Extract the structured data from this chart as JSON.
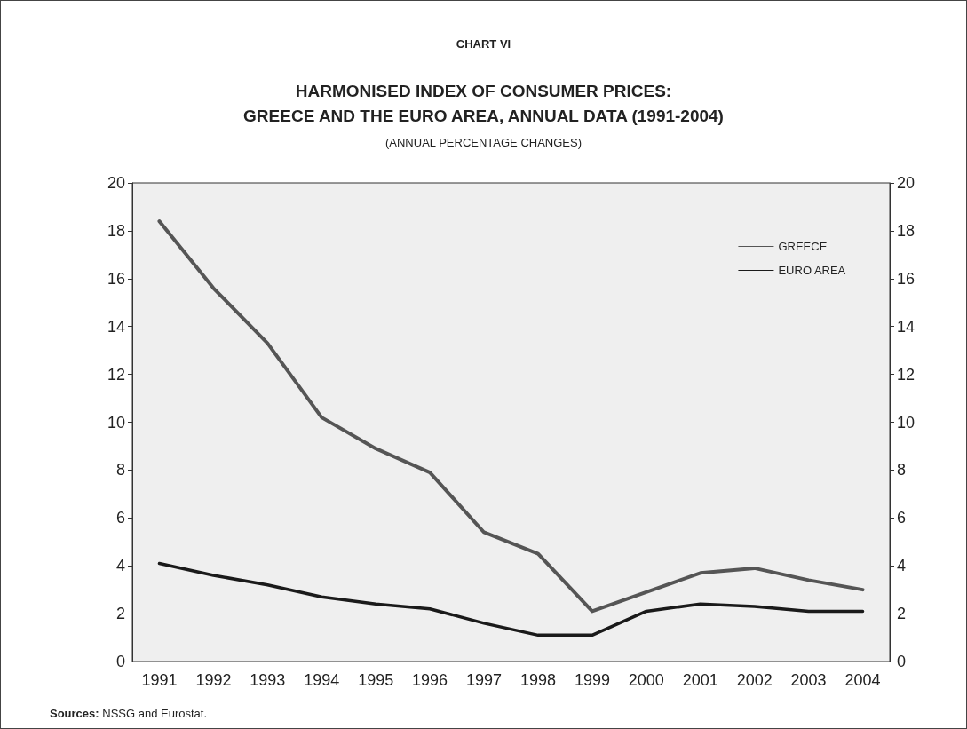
{
  "chart_data": {
    "type": "line",
    "title": "HARMONISED INDEX OF CONSUMER PRICES:\nGREECE AND THE EURO AREA, ANNUAL DATA (1991-2004)",
    "subtitle": "(ANNUAL PERCENTAGE CHANGES)",
    "categories": [
      "1991",
      "1992",
      "1993",
      "1994",
      "1995",
      "1996",
      "1997",
      "1998",
      "1999",
      "2000",
      "2001",
      "2002",
      "2003",
      "2004"
    ],
    "series": [
      {
        "name": "GREECE",
        "color": "#555555",
        "values": [
          18.4,
          15.6,
          13.3,
          10.2,
          8.9,
          7.9,
          5.4,
          4.5,
          2.1,
          2.9,
          3.7,
          3.9,
          3.4,
          3.0
        ]
      },
      {
        "name": "EURO AREA",
        "color": "#1a1a1a",
        "values": [
          4.1,
          3.6,
          3.2,
          2.7,
          2.4,
          2.2,
          1.6,
          1.1,
          1.1,
          2.1,
          2.4,
          2.3,
          2.1,
          2.1
        ]
      }
    ],
    "ylim": [
      0,
      20
    ],
    "yticks": [
      0,
      2,
      4,
      6,
      8,
      10,
      12,
      14,
      16,
      18,
      20
    ],
    "y2lim": [
      0,
      20
    ],
    "y2ticks": [
      0,
      2,
      4,
      6,
      8,
      10,
      12,
      14,
      16,
      18,
      20
    ],
    "legend": "top right",
    "marker": "none",
    "line_style": "solid",
    "annotations": [
      "CHART VI",
      "Sources: NSSG and Eurostat."
    ]
  }
}
